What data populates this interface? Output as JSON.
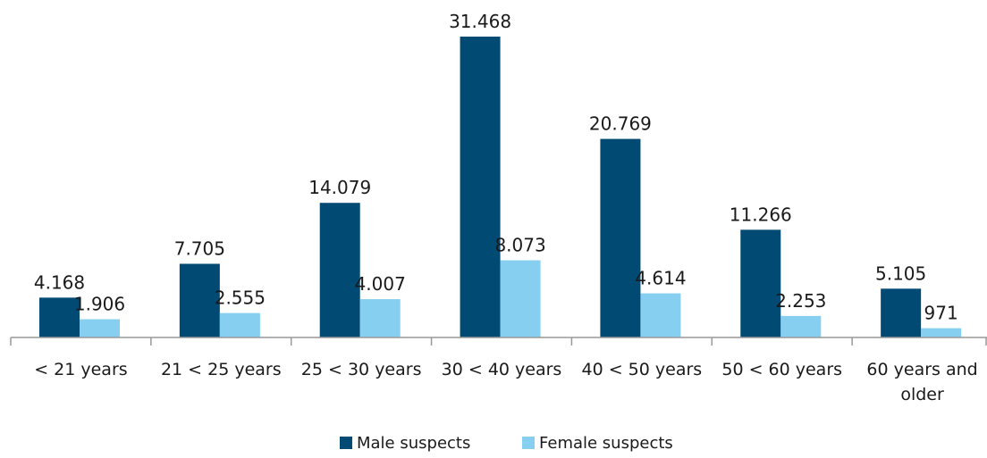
{
  "chart_data": {
    "type": "bar",
    "categories": [
      "< 21 years",
      "21 < 25 years",
      "25 < 30 years",
      "30 < 40 years",
      "40 < 50 years",
      "50 < 60 years",
      "60 years and older"
    ],
    "series": [
      {
        "name": "Male suspects",
        "color": "#004a74",
        "values": [
          4168,
          7705,
          14079,
          31468,
          20769,
          11266,
          5105
        ],
        "labels": [
          "4.168",
          "7.705",
          "14.079",
          "31.468",
          "20.769",
          "11.266",
          "5.105"
        ]
      },
      {
        "name": "Female suspects",
        "color": "#86cff0",
        "values": [
          1906,
          2555,
          4007,
          8073,
          4614,
          2253,
          971
        ],
        "labels": [
          "1.906",
          "2.555",
          "4.007",
          "8.073",
          "4.614",
          "2.253",
          "971"
        ]
      }
    ],
    "title": "",
    "xlabel": "",
    "ylabel": "",
    "ylim": [
      0,
      31468
    ],
    "grid": false,
    "legend": "bottom-center",
    "axis_color": "#999999"
  }
}
